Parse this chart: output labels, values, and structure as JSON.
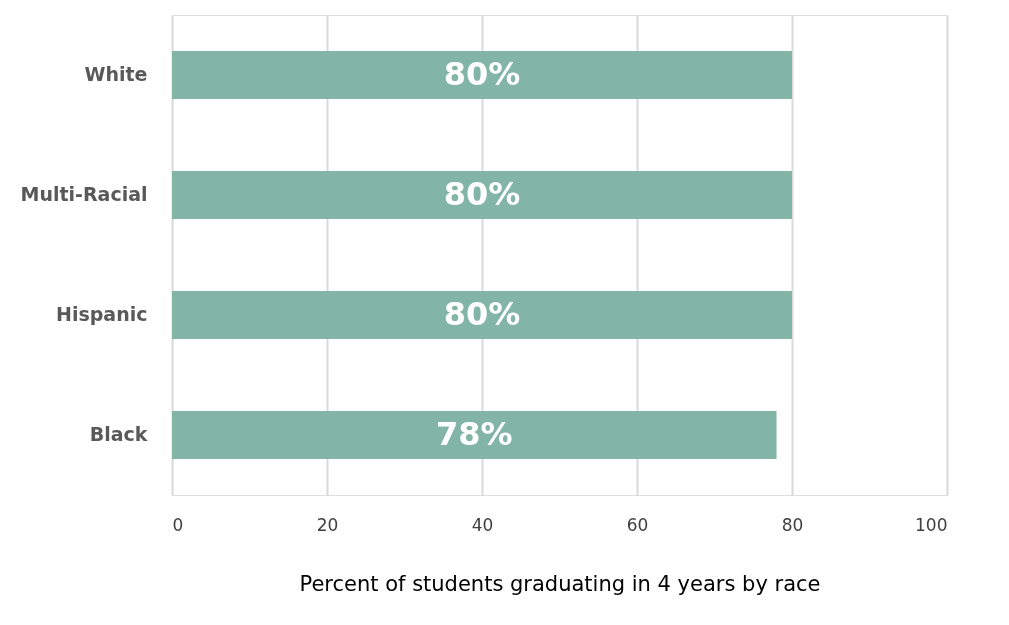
{
  "chart_data": {
    "type": "bar",
    "orientation": "horizontal",
    "categories": [
      "White",
      "Multi-Racial",
      "Hispanic",
      "Black"
    ],
    "values": [
      80,
      80,
      80,
      78
    ],
    "value_labels": [
      "80%",
      "80%",
      "80%",
      "78%"
    ],
    "color": "#82b5a5",
    "xlim": [
      0,
      100
    ],
    "xticks": [
      0,
      20,
      40,
      60,
      80,
      100
    ],
    "xlabel": "Percent of students graduating in 4 years by race",
    "grid": "x"
  }
}
